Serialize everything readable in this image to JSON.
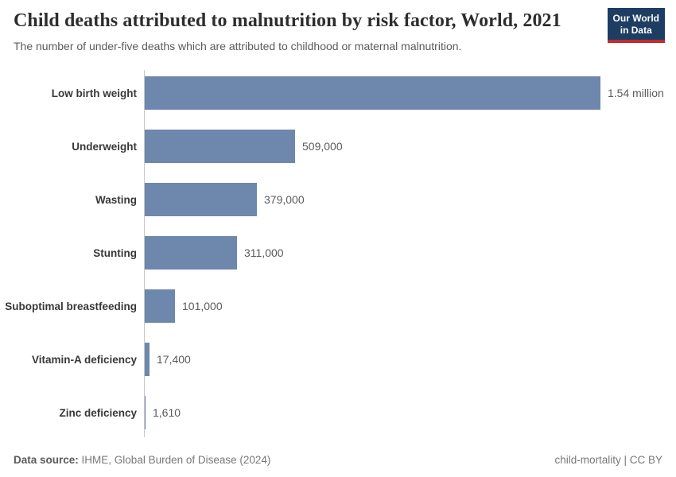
{
  "header": {
    "title": "Child deaths attributed to malnutrition by risk factor, World, 2021",
    "subtitle": "The number of under-five deaths which are attributed to childhood or maternal malnutrition.",
    "logo_line1": "Our World",
    "logo_line2": "in Data"
  },
  "chart_data": {
    "type": "bar",
    "orientation": "horizontal",
    "title": "Child deaths attributed to malnutrition by risk factor, World, 2021",
    "categories": [
      "Low birth weight",
      "Underweight",
      "Wasting",
      "Stunting",
      "Suboptimal breastfeeding",
      "Vitamin-A deficiency",
      "Zinc deficiency"
    ],
    "values": [
      1540000,
      509000,
      379000,
      311000,
      101000,
      17400,
      1610
    ],
    "value_labels": [
      "1.54 million",
      "509,000",
      "379,000",
      "311,000",
      "101,000",
      "17,400",
      "1,610"
    ],
    "xlabel": "",
    "ylabel": "",
    "xlim": [
      0,
      1540000
    ],
    "grid": false,
    "legend": "none",
    "bar_color": "#6d87ad",
    "axis_line_color": "#c9c9c9"
  },
  "footer": {
    "source_label": "Data source:",
    "source_text": "IHME, Global Burden of Disease (2024)",
    "credit": "child-mortality | CC BY"
  }
}
